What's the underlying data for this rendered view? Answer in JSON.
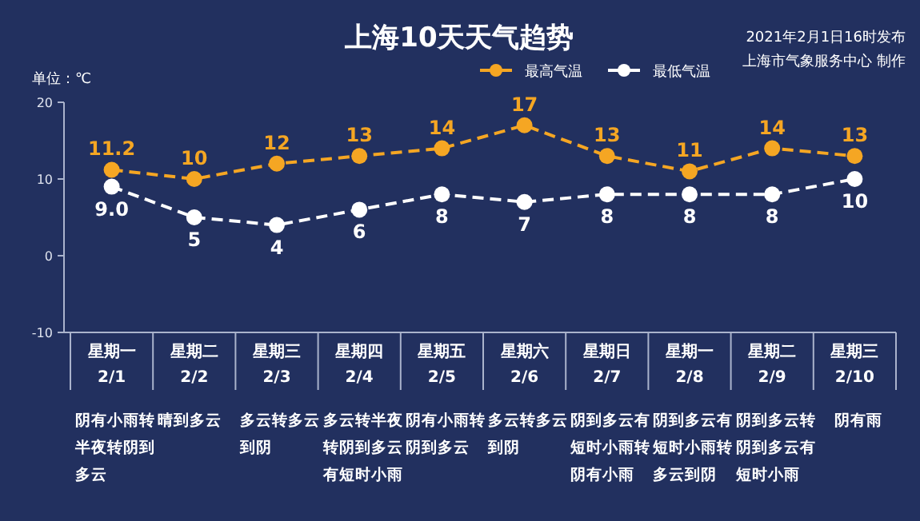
{
  "chart_data": {
    "type": "line",
    "title": "上海10天天气趋势",
    "subtitle": "2021年2月1日16时发布",
    "ylabel": "单位：℃",
    "categories": [
      "星期一 2/1",
      "星期二 2/2",
      "星期三 2/3",
      "星期四 2/4",
      "星期五 2/5",
      "星期六 2/6",
      "星期日 2/7",
      "星期一 2/8",
      "星期二 2/9",
      "星期三 2/10"
    ],
    "series": [
      {
        "name": "最高气温",
        "color": "#f5a623",
        "values": [
          11.2,
          10,
          12,
          13,
          14,
          17,
          13,
          11,
          14,
          13
        ],
        "value_labels": [
          "11.2",
          "10",
          "12",
          "13",
          "14",
          "17",
          "13",
          "11",
          "14",
          "13"
        ]
      },
      {
        "name": "最低气温",
        "color": "#ffffff",
        "values": [
          9,
          5,
          4,
          6,
          8,
          7,
          8,
          8,
          8,
          10
        ],
        "value_labels": [
          "9.0",
          "5",
          "4",
          "6",
          "8",
          "7",
          "8",
          "8",
          "8",
          "10"
        ]
      }
    ],
    "ylim": [
      -10,
      20
    ],
    "yticks": [
      -10,
      0,
      10,
      20
    ],
    "grid": false,
    "legend": "top",
    "marker": "circle",
    "line_style": "dashed",
    "annotations": [
      "上海市气象服务中心 制作",
      "阴有小雨转半夜转阴到多云",
      "晴到多云",
      "多云转多云到阴",
      "多云转半夜转阴到多云有短时小雨",
      "阴有小雨转阴到多云",
      "多云转多云到阴",
      "阴到多云有短时小雨转阴有小雨",
      "阴到多云有短时小雨转多云到阴",
      "阴到多云转阴到多云有短时小雨",
      "阴有雨"
    ]
  }
}
